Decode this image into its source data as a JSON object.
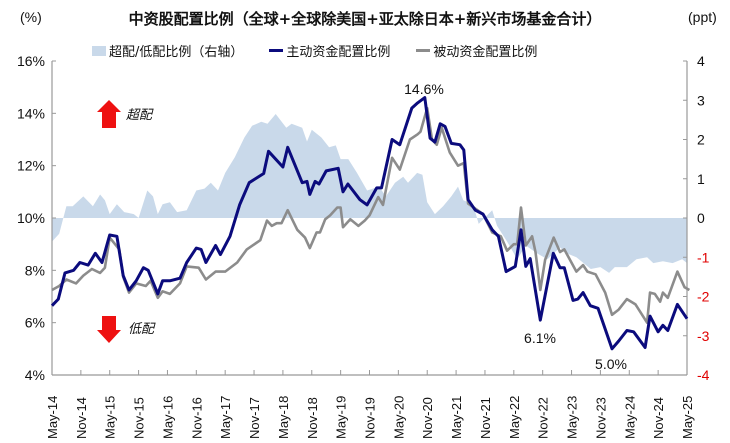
{
  "chart_data": {
    "type": "line",
    "title": "中资股配置比例（全球+全球除美国+亚太除日本+新兴市场基金合计）",
    "left_unit": "(%)",
    "right_unit": "(ppt)",
    "x_unit": "months since May-14",
    "x_tick_labels": [
      "May-14",
      "Nov-14",
      "May-15",
      "Nov-15",
      "May-16",
      "Nov-16",
      "May-17",
      "Nov-17",
      "May-18",
      "Nov-18",
      "May-19",
      "Nov-19",
      "May-20",
      "Nov-20",
      "May-21",
      "Nov-21",
      "May-22",
      "Nov-22",
      "May-23",
      "Nov-23",
      "May-24",
      "Nov-24",
      "May-25"
    ],
    "xlim": [
      0,
      132
    ],
    "ylim_left": [
      4,
      16
    ],
    "y_ticks_left": [
      "4%",
      "6%",
      "8%",
      "10%",
      "12%",
      "14%",
      "16%"
    ],
    "ylim_right": [
      -4,
      4
    ],
    "y_ticks_right": [
      "-4",
      "-3",
      "-2",
      "-1",
      "0",
      "1",
      "2",
      "3",
      "4"
    ],
    "colors": {
      "area": "#c9d9ea",
      "active": "#0b0b7d",
      "passive": "#8c8c8c",
      "negative_tick": "#e00000",
      "arrow": "#ee1111"
    },
    "legend": [
      "超配/低配比例（右轴）",
      "主动资金配置比例",
      "被动资金配置比例"
    ],
    "annotations": {
      "over": "超配",
      "under": "低配",
      "peak": "14.6%",
      "low1": "6.1%",
      "low2": "5.0%"
    },
    "series": [
      {
        "name": "超配/低配比例（右轴）",
        "axis": "right",
        "kind": "area",
        "points": [
          [
            0,
            -0.6
          ],
          [
            1.5,
            -0.4
          ],
          [
            3,
            0.3
          ],
          [
            4.3,
            0.3
          ],
          [
            6.5,
            0.55
          ],
          [
            8.5,
            0.3
          ],
          [
            10,
            0.6
          ],
          [
            11,
            0.45
          ],
          [
            12,
            0.1
          ],
          [
            13.5,
            0.35
          ],
          [
            15,
            0.15
          ],
          [
            17,
            0.1
          ],
          [
            18,
            0.0
          ],
          [
            19.8,
            0.7
          ],
          [
            21,
            0.55
          ],
          [
            22,
            0.1
          ],
          [
            23,
            0.35
          ],
          [
            24.5,
            0.4
          ],
          [
            26,
            0.15
          ],
          [
            28,
            0.2
          ],
          [
            30,
            0.7
          ],
          [
            31.7,
            0.75
          ],
          [
            33,
            0.9
          ],
          [
            34.5,
            0.7
          ],
          [
            36,
            1.15
          ],
          [
            38,
            1.55
          ],
          [
            40,
            2.05
          ],
          [
            41.6,
            2.35
          ],
          [
            43.5,
            2.45
          ],
          [
            44.8,
            2.4
          ],
          [
            46.5,
            2.65
          ],
          [
            48.7,
            2.3
          ],
          [
            49.8,
            2.4
          ],
          [
            52,
            2.3
          ],
          [
            53,
            1.95
          ],
          [
            54,
            2.25
          ],
          [
            56,
            2.05
          ],
          [
            57.6,
            1.8
          ],
          [
            59,
            1.85
          ],
          [
            60,
            1.5
          ],
          [
            61.6,
            1.5
          ],
          [
            63.4,
            1.15
          ],
          [
            65.5,
            0.7
          ],
          [
            68,
            0.8
          ],
          [
            69.4,
            0.55
          ],
          [
            71.3,
            0.9
          ],
          [
            73,
            1.05
          ],
          [
            74,
            0.9
          ],
          [
            75.9,
            1.15
          ],
          [
            77,
            1.1
          ],
          [
            78,
            0.4
          ],
          [
            79.6,
            0.1
          ],
          [
            81.3,
            0.3
          ],
          [
            83,
            0.55
          ],
          [
            84.4,
            0.8
          ],
          [
            85.5,
            0.45
          ],
          [
            86.5,
            0.4
          ],
          [
            88,
            0.15
          ],
          [
            88.7,
            -0.15
          ],
          [
            90.3,
            0.05
          ],
          [
            91.5,
            0.2
          ],
          [
            92.5,
            -0.2
          ],
          [
            94.6,
            -0.6
          ],
          [
            96.7,
            -1.05
          ],
          [
            98.5,
            -0.7
          ],
          [
            100.8,
            -0.9
          ],
          [
            103,
            -1.05
          ],
          [
            105.6,
            -0.75
          ],
          [
            107,
            -0.9
          ],
          [
            109,
            -1.0
          ],
          [
            112,
            -1.3
          ],
          [
            114,
            -1.25
          ],
          [
            115.8,
            -1.4
          ],
          [
            117,
            -1.25
          ],
          [
            119.5,
            -1.25
          ],
          [
            121.5,
            -1.05
          ],
          [
            123.7,
            -1.0
          ],
          [
            125,
            -1.15
          ],
          [
            127,
            -1.1
          ],
          [
            129,
            -1.15
          ],
          [
            131,
            -1.05
          ],
          [
            132,
            -1.15
          ]
        ]
      },
      {
        "name": "主动资金配置比例",
        "axis": "left",
        "kind": "line",
        "points": [
          [
            0,
            6.65
          ],
          [
            1.3,
            6.9
          ],
          [
            2.7,
            7.9
          ],
          [
            4.5,
            8.0
          ],
          [
            5.8,
            8.3
          ],
          [
            7.5,
            8.2
          ],
          [
            9,
            8.65
          ],
          [
            10.4,
            8.3
          ],
          [
            12,
            9.35
          ],
          [
            13.5,
            9.3
          ],
          [
            14.8,
            7.8
          ],
          [
            16,
            7.25
          ],
          [
            17.5,
            7.6
          ],
          [
            19,
            8.1
          ],
          [
            20,
            8.0
          ],
          [
            22,
            7.1
          ],
          [
            23,
            7.6
          ],
          [
            24.5,
            7.6
          ],
          [
            26.6,
            7.7
          ],
          [
            28,
            8.3
          ],
          [
            30,
            8.85
          ],
          [
            31,
            8.8
          ],
          [
            32,
            8.3
          ],
          [
            34,
            8.95
          ],
          [
            35,
            8.6
          ],
          [
            37,
            9.3
          ],
          [
            39,
            10.5
          ],
          [
            41,
            11.35
          ],
          [
            44,
            11.7
          ],
          [
            45,
            12.55
          ],
          [
            48,
            11.95
          ],
          [
            49,
            12.7
          ],
          [
            52,
            11.35
          ],
          [
            53,
            11.4
          ],
          [
            53.6,
            10.9
          ],
          [
            54.7,
            11.4
          ],
          [
            55.5,
            11.3
          ],
          [
            57,
            11.8
          ],
          [
            59.5,
            11.9
          ],
          [
            60.5,
            11.0
          ],
          [
            61.5,
            11.3
          ],
          [
            64,
            10.7
          ],
          [
            65.5,
            10.5
          ],
          [
            67.5,
            11.15
          ],
          [
            68.5,
            11.15
          ],
          [
            70.7,
            13.0
          ],
          [
            72.3,
            12.8
          ],
          [
            74.8,
            14.2
          ],
          [
            76,
            14.4
          ],
          [
            77.5,
            14.6
          ],
          [
            78.6,
            13.05
          ],
          [
            79.6,
            12.9
          ],
          [
            80.7,
            13.6
          ],
          [
            81.7,
            13.5
          ],
          [
            83,
            12.85
          ],
          [
            84.8,
            12.8
          ],
          [
            85.6,
            12.6
          ],
          [
            86.5,
            10.7
          ],
          [
            88,
            10.3
          ],
          [
            89.6,
            10.15
          ],
          [
            91.5,
            9.55
          ],
          [
            92.8,
            9.3
          ],
          [
            94.4,
            7.95
          ],
          [
            96.3,
            8.15
          ],
          [
            97.5,
            9.55
          ],
          [
            98.5,
            8.15
          ],
          [
            99.4,
            8.45
          ],
          [
            101.5,
            6.1
          ],
          [
            104.2,
            8.65
          ],
          [
            105.6,
            8.1
          ],
          [
            106.5,
            8.1
          ],
          [
            108.3,
            6.85
          ],
          [
            109.3,
            6.9
          ],
          [
            110.4,
            7.15
          ],
          [
            111.9,
            6.65
          ],
          [
            113.5,
            6.55
          ],
          [
            116.4,
            5.0
          ],
          [
            117.8,
            5.3
          ],
          [
            119.5,
            5.7
          ],
          [
            120.9,
            5.65
          ],
          [
            123.3,
            5.05
          ],
          [
            124.3,
            6.25
          ],
          [
            126,
            5.65
          ],
          [
            127,
            5.9
          ],
          [
            128,
            5.7
          ],
          [
            130,
            6.7
          ],
          [
            132,
            6.15
          ]
        ]
      },
      {
        "name": "被动资金配置比例",
        "axis": "left",
        "kind": "line",
        "points": [
          [
            0,
            7.25
          ],
          [
            1.5,
            7.4
          ],
          [
            3,
            7.65
          ],
          [
            5,
            7.5
          ],
          [
            6.5,
            7.8
          ],
          [
            8.3,
            8.05
          ],
          [
            10,
            7.9
          ],
          [
            11,
            8.1
          ],
          [
            12,
            9.25
          ],
          [
            14,
            8.8
          ],
          [
            14.8,
            7.75
          ],
          [
            16,
            7.15
          ],
          [
            17.5,
            7.5
          ],
          [
            19.5,
            7.4
          ],
          [
            20.5,
            7.6
          ],
          [
            22,
            6.95
          ],
          [
            23,
            7.2
          ],
          [
            24.5,
            7.1
          ],
          [
            26.6,
            7.5
          ],
          [
            28,
            8.15
          ],
          [
            30.5,
            8.1
          ],
          [
            32,
            7.65
          ],
          [
            34,
            7.95
          ],
          [
            36,
            7.95
          ],
          [
            38.5,
            8.3
          ],
          [
            40.5,
            8.8
          ],
          [
            43.3,
            9.15
          ],
          [
            44.7,
            9.9
          ],
          [
            45.7,
            9.7
          ],
          [
            46.7,
            9.8
          ],
          [
            47.7,
            9.8
          ],
          [
            49,
            10.3
          ],
          [
            51,
            9.55
          ],
          [
            52.6,
            9.25
          ],
          [
            53.6,
            8.85
          ],
          [
            55,
            9.45
          ],
          [
            55.7,
            9.45
          ],
          [
            56.8,
            9.95
          ],
          [
            57.8,
            10.1
          ],
          [
            59.3,
            10.4
          ],
          [
            60,
            10.4
          ],
          [
            60.5,
            9.65
          ],
          [
            62,
            9.95
          ],
          [
            63.7,
            9.7
          ],
          [
            65,
            9.9
          ],
          [
            66,
            10.1
          ],
          [
            67.8,
            10.8
          ],
          [
            68.8,
            10.5
          ],
          [
            70.7,
            12.3
          ],
          [
            72.3,
            11.85
          ],
          [
            74.4,
            13.0
          ],
          [
            76,
            13.2
          ],
          [
            76.6,
            13.3
          ],
          [
            78,
            14.2
          ],
          [
            79,
            13.0
          ],
          [
            80,
            12.8
          ],
          [
            81,
            13.45
          ],
          [
            82.7,
            12.5
          ],
          [
            84.4,
            12.0
          ],
          [
            85.6,
            12.1
          ],
          [
            86.5,
            10.55
          ],
          [
            89.6,
            10.15
          ],
          [
            91.5,
            9.45
          ],
          [
            93.3,
            9.3
          ],
          [
            94.6,
            8.75
          ],
          [
            96,
            9.0
          ],
          [
            96.7,
            9.0
          ],
          [
            97.5,
            10.4
          ],
          [
            98.5,
            8.95
          ],
          [
            99.8,
            9.3
          ],
          [
            100.5,
            8.7
          ],
          [
            101.5,
            7.25
          ],
          [
            102.5,
            8.4
          ],
          [
            104.3,
            9.25
          ],
          [
            105.6,
            8.7
          ],
          [
            106.5,
            8.8
          ],
          [
            109,
            7.95
          ],
          [
            110.4,
            8.2
          ],
          [
            111.3,
            7.95
          ],
          [
            113,
            7.85
          ],
          [
            115,
            7.15
          ],
          [
            116.4,
            6.3
          ],
          [
            117.8,
            6.5
          ],
          [
            119.5,
            6.9
          ],
          [
            121.3,
            6.7
          ],
          [
            123.7,
            6.0
          ],
          [
            124.3,
            7.15
          ],
          [
            125.3,
            7.1
          ],
          [
            126.4,
            6.8
          ],
          [
            127,
            7.15
          ],
          [
            128,
            6.95
          ],
          [
            130,
            7.95
          ],
          [
            131.5,
            7.35
          ],
          [
            132.5,
            7.25
          ]
        ]
      }
    ]
  }
}
